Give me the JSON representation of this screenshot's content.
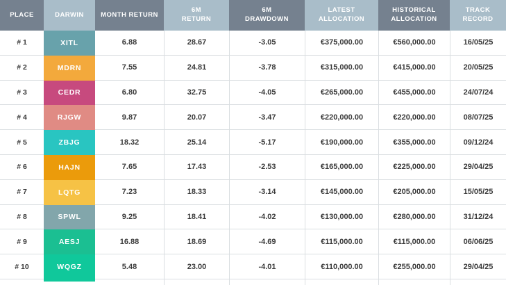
{
  "header": {
    "columns": [
      {
        "label": "PLACE",
        "tone": "dark"
      },
      {
        "label": "DARWIN",
        "tone": "light"
      },
      {
        "label": "MONTH RETURN",
        "tone": "dark"
      },
      {
        "label": "6M\nRETURN",
        "tone": "light"
      },
      {
        "label": "6M\nDRAWDOWN",
        "tone": "dark"
      },
      {
        "label": "LATEST\nALLOCATION",
        "tone": "light"
      },
      {
        "label": "HISTORICAL\nALLOCATION",
        "tone": "dark"
      },
      {
        "label": "TRACK\nRECORD",
        "tone": "light"
      }
    ]
  },
  "rows": [
    {
      "place": "# 1",
      "darwin": "XITL",
      "badge_color": "#68A2AB",
      "month_return": "6.88",
      "six_month_return": "28.67",
      "six_month_drawdown": "-3.05",
      "latest_allocation": "€375,000.00",
      "historical_allocation": "€560,000.00",
      "track_record": "16/05/25"
    },
    {
      "place": "# 2",
      "darwin": "MDRN",
      "badge_color": "#F3A93C",
      "month_return": "7.55",
      "six_month_return": "24.81",
      "six_month_drawdown": "-3.78",
      "latest_allocation": "€315,000.00",
      "historical_allocation": "€415,000.00",
      "track_record": "20/05/25"
    },
    {
      "place": "# 3",
      "darwin": "CEDR",
      "badge_color": "#C74A7E",
      "month_return": "6.80",
      "six_month_return": "32.75",
      "six_month_drawdown": "-4.05",
      "latest_allocation": "€265,000.00",
      "historical_allocation": "€455,000.00",
      "track_record": "24/07/24"
    },
    {
      "place": "# 4",
      "darwin": "RJGW",
      "badge_color": "#E08B84",
      "month_return": "9.87",
      "six_month_return": "20.07",
      "six_month_drawdown": "-3.47",
      "latest_allocation": "€220,000.00",
      "historical_allocation": "€220,000.00",
      "track_record": "08/07/25"
    },
    {
      "place": "# 5",
      "darwin": "ZBJG",
      "badge_color": "#29C5C1",
      "month_return": "18.32",
      "six_month_return": "25.14",
      "six_month_drawdown": "-5.17",
      "latest_allocation": "€190,000.00",
      "historical_allocation": "€355,000.00",
      "track_record": "09/12/24"
    },
    {
      "place": "# 6",
      "darwin": "HAJN",
      "badge_color": "#EB9B0B",
      "month_return": "7.65",
      "six_month_return": "17.43",
      "six_month_drawdown": "-2.53",
      "latest_allocation": "€165,000.00",
      "historical_allocation": "€225,000.00",
      "track_record": "29/04/25"
    },
    {
      "place": "# 7",
      "darwin": "LQTG",
      "badge_color": "#F6C245",
      "month_return": "7.23",
      "six_month_return": "18.33",
      "six_month_drawdown": "-3.14",
      "latest_allocation": "€145,000.00",
      "historical_allocation": "€205,000.00",
      "track_record": "15/05/25"
    },
    {
      "place": "# 8",
      "darwin": "SPWL",
      "badge_color": "#82A6AB",
      "month_return": "9.25",
      "six_month_return": "18.41",
      "six_month_drawdown": "-4.02",
      "latest_allocation": "€130,000.00",
      "historical_allocation": "€280,000.00",
      "track_record": "31/12/24"
    },
    {
      "place": "# 9",
      "darwin": "AESJ",
      "badge_color": "#1BBF92",
      "month_return": "16.88",
      "six_month_return": "18.69",
      "six_month_drawdown": "-4.69",
      "latest_allocation": "€115,000.00",
      "historical_allocation": "€115,000.00",
      "track_record": "06/06/25"
    },
    {
      "place": "# 10",
      "darwin": "WQGZ",
      "badge_color": "#10C89B",
      "month_return": "5.48",
      "six_month_return": "23.00",
      "six_month_drawdown": "-4.01",
      "latest_allocation": "€110,000.00",
      "historical_allocation": "€255,000.00",
      "track_record": "29/04/25"
    }
  ],
  "partial_next_row": {
    "badge_color": "#10C89B"
  },
  "colors": {
    "header_dark": "#75818F",
    "header_light": "#A9BDC9",
    "row_border": "#DADEE1",
    "body_text": "#3A3A3A",
    "header_text": "#FFFFFF"
  }
}
